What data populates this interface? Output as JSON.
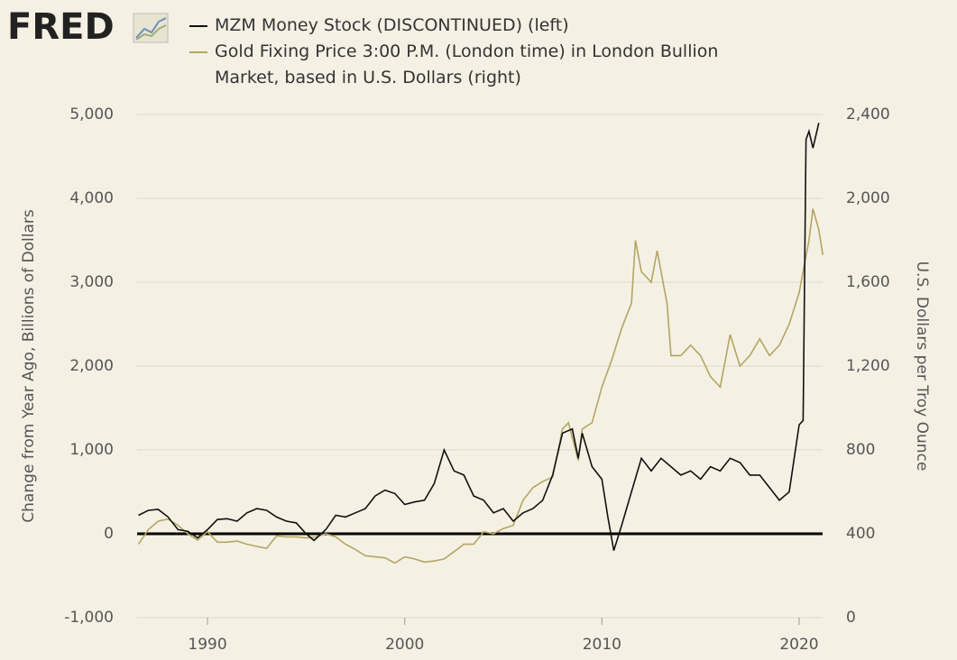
{
  "chart_data": {
    "type": "line",
    "logo": "FRED",
    "y_label": "Change from Year Ago, Billions of Dollars",
    "y2_label": "U.S. Dollars per Troy Ounce",
    "xlim": [
      1986.43,
      2021.19
    ],
    "xticks": [
      1990,
      2000,
      2010,
      2020
    ],
    "ylim": [
      -1000,
      5000
    ],
    "yticks": [
      {
        "value": 5000,
        "label": "5,000"
      },
      {
        "value": 4000,
        "label": "4,000"
      },
      {
        "value": 3000,
        "label": "3,000"
      },
      {
        "value": 2000,
        "label": "2,000"
      },
      {
        "value": 1000,
        "label": "1,000"
      },
      0,
      {
        "value": -1000,
        "label": "-1,000"
      }
    ],
    "y2lim": [
      0,
      2400
    ],
    "y2ticks": [
      {
        "value": 2400,
        "label": "2,400"
      },
      {
        "value": 2000,
        "label": "2,000"
      },
      {
        "value": 1600,
        "label": "1,600"
      },
      {
        "value": 1200,
        "label": "1,200"
      },
      800,
      400,
      0
    ],
    "grid": true,
    "series": [
      {
        "name": "MZM Money Stock (DISCONTINUED) (left)",
        "color": "#111111",
        "axis": "y",
        "x": [
          1986.5,
          1987,
          1987.5,
          1988,
          1988.5,
          1989,
          1989.5,
          1990,
          1990.5,
          1991,
          1991.5,
          1992,
          1992.5,
          1993,
          1993.5,
          1994,
          1994.5,
          1995,
          1995.4,
          1996,
          1996.5,
          1997,
          1997.5,
          1998,
          1998.5,
          1999,
          1999.5,
          2000,
          2000.5,
          2001,
          2001.5,
          2002,
          2002.5,
          2003,
          2003.5,
          2004,
          2004.5,
          2005,
          2005.5,
          2006,
          2006.5,
          2007,
          2007.5,
          2008,
          2008.5,
          2008.8,
          2009,
          2009.5,
          2010,
          2010.3,
          2010.6,
          2011,
          2011.5,
          2012,
          2012.5,
          2013,
          2013.5,
          2014,
          2014.5,
          2015,
          2015.5,
          2016,
          2016.5,
          2017,
          2017.5,
          2018,
          2018.5,
          2019,
          2019.5,
          2020,
          2020.2,
          2020.35,
          2020.5,
          2020.7,
          2021
        ],
        "values": [
          220,
          280,
          290,
          200,
          50,
          30,
          -50,
          50,
          170,
          180,
          150,
          250,
          300,
          280,
          200,
          150,
          130,
          0,
          -80,
          50,
          220,
          200,
          250,
          300,
          450,
          520,
          480,
          350,
          380,
          400,
          600,
          1000,
          750,
          700,
          450,
          400,
          250,
          300,
          150,
          250,
          300,
          400,
          700,
          1200,
          1250,
          900,
          1200,
          800,
          650,
          200,
          -200,
          100,
          500,
          900,
          750,
          900,
          800,
          700,
          750,
          650,
          800,
          750,
          900,
          850,
          700,
          700,
          550,
          400,
          500,
          1300,
          1350,
          4700,
          4800,
          4600,
          4900
        ]
      },
      {
        "name": "Gold Fixing Price 3:00 P.M. (London time) in London Bullion Market, based in U.S. Dollars (right)",
        "color": "#b5a462",
        "axis": "y2",
        "x": [
          1986.5,
          1987,
          1987.5,
          1988,
          1988.5,
          1989,
          1989.5,
          1990,
          1990.5,
          1991,
          1991.5,
          1992,
          1992.5,
          1993,
          1993.5,
          1994,
          1994.5,
          1995,
          1995.5,
          1996,
          1996.5,
          1997,
          1997.5,
          1998,
          1998.5,
          1999,
          1999.5,
          2000,
          2000.5,
          2001,
          2001.5,
          2002,
          2002.5,
          2003,
          2003.5,
          2004,
          2004.5,
          2005,
          2005.5,
          2006,
          2006.5,
          2007,
          2007.5,
          2008,
          2008.3,
          2008.8,
          2009,
          2009.5,
          2010,
          2010.5,
          2011,
          2011.5,
          2011.7,
          2012,
          2012.5,
          2012.8,
          2013,
          2013.3,
          2013.5,
          2014,
          2014.5,
          2015,
          2015.5,
          2016,
          2016.5,
          2017,
          2017.5,
          2018,
          2018.5,
          2019,
          2019.5,
          2020,
          2020.5,
          2020.7,
          2021,
          2021.2
        ],
        "values": [
          350,
          420,
          460,
          470,
          440,
          400,
          370,
          410,
          360,
          360,
          365,
          350,
          340,
          330,
          390,
          385,
          385,
          380,
          385,
          400,
          385,
          350,
          325,
          295,
          290,
          285,
          260,
          290,
          280,
          265,
          270,
          280,
          315,
          350,
          350,
          410,
          400,
          425,
          440,
          560,
          620,
          650,
          670,
          900,
          930,
          750,
          900,
          930,
          1100,
          1230,
          1380,
          1500,
          1800,
          1650,
          1600,
          1750,
          1650,
          1500,
          1250,
          1250,
          1300,
          1250,
          1150,
          1100,
          1350,
          1200,
          1250,
          1330,
          1250,
          1300,
          1400,
          1550,
          1800,
          1950,
          1850,
          1730
        ]
      }
    ]
  }
}
